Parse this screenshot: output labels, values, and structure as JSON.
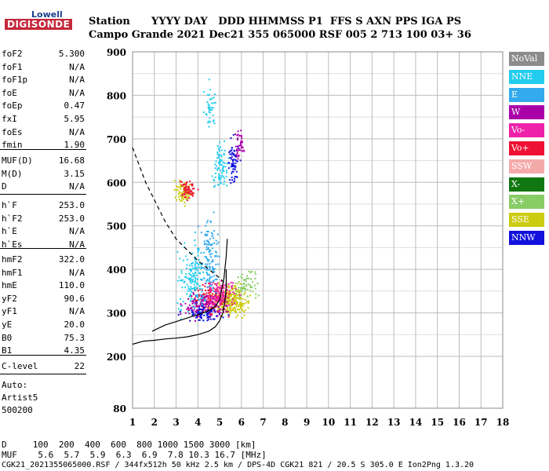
{
  "logo": {
    "top": "Lowell",
    "main": "DIGISONDE"
  },
  "header": {
    "line1": "Station      YYYY DAY   DDD HHMMSS P1  FFS S AXN PPS IGA PS",
    "line2": "Campo Grande 2021 Dec21 355 065000 RSF 005 2 713 100 03+ 36"
  },
  "params_group1": [
    {
      "name": "foF2",
      "value": "5.300"
    },
    {
      "name": "foF1",
      "value": "N/A"
    },
    {
      "name": "foF1p",
      "value": "N/A"
    },
    {
      "name": "foE",
      "value": "N/A"
    },
    {
      "name": "foEp",
      "value": "0.47"
    },
    {
      "name": "fxI",
      "value": "5.95"
    },
    {
      "name": "foEs",
      "value": "N/A"
    },
    {
      "name": "fmin",
      "value": "1.90"
    }
  ],
  "params_group2": [
    {
      "name": "MUF(D)",
      "value": "16.68"
    },
    {
      "name": "M(D)",
      "value": "3.15"
    },
    {
      "name": "D",
      "value": "N/A"
    }
  ],
  "params_group3": [
    {
      "name": "h`F",
      "value": "253.0"
    },
    {
      "name": "h`F2",
      "value": "253.0"
    },
    {
      "name": "h`E",
      "value": "N/A"
    },
    {
      "name": "h`Es",
      "value": "N/A"
    }
  ],
  "params_group4": [
    {
      "name": "hmF2",
      "value": "322.0"
    },
    {
      "name": "hmF1",
      "value": "N/A"
    },
    {
      "name": "hmE",
      "value": "110.0"
    },
    {
      "name": "yF2",
      "value": "90.6"
    },
    {
      "name": "yF1",
      "value": "N/A"
    },
    {
      "name": "yE",
      "value": "20.0"
    },
    {
      "name": "B0",
      "value": "75.3"
    },
    {
      "name": "B1",
      "value": "4.35"
    }
  ],
  "params_group5": [
    {
      "name": "C-level",
      "value": "22"
    }
  ],
  "autoscaling": {
    "line1": "Auto:",
    "line2": "Artist5",
    "line3": "500200"
  },
  "bottom": {
    "d_row": "D     100  200  400  600  800 1000 1500 3000 [km]",
    "muf_row": "MUF    5.6  5.7  5.9  6.3  6.9  7.8 10.3 16.7 [MHz]",
    "footer": "CGK21_2021355065000.RSF / 344fx512h 50 kHz 2.5 km / DPS-4D CGK21 821 / 20.5 S 305.0 E Ion2Png 1.3.20"
  },
  "legend": [
    {
      "label": "NoVal",
      "color": "#8c8c8c"
    },
    {
      "label": "NNE",
      "color": "#22ccee"
    },
    {
      "label": "E",
      "color": "#33aaee"
    },
    {
      "label": "W",
      "color": "#aa00aa"
    },
    {
      "label": "Vo-",
      "color": "#ee22aa"
    },
    {
      "label": "Vo+",
      "color": "#ee1133"
    },
    {
      "label": "SSW",
      "color": "#f5aaaa"
    },
    {
      "label": "X-",
      "color": "#117711"
    },
    {
      "label": "X+",
      "color": "#88cc66"
    },
    {
      "label": "SSE",
      "color": "#cccc11"
    },
    {
      "label": "NNW",
      "color": "#1111dd"
    }
  ],
  "chart_data": {
    "type": "scatter",
    "xlim": [
      1,
      18
    ],
    "ylim": [
      80,
      900
    ],
    "x_ticks": [
      1,
      2,
      3,
      4,
      5,
      6,
      7,
      8,
      9,
      10,
      11,
      12,
      13,
      14,
      15,
      16,
      17,
      18
    ],
    "y_ticks": [
      80,
      200,
      300,
      400,
      500,
      600,
      700,
      800,
      900
    ],
    "grid": true,
    "curves": [
      {
        "name": "profile",
        "style": "solid",
        "points": [
          [
            1,
            228
          ],
          [
            1.5,
            235
          ],
          [
            2,
            237
          ],
          [
            2.5,
            240
          ],
          [
            3,
            242
          ],
          [
            3.5,
            245
          ],
          [
            4,
            250
          ],
          [
            4.5,
            258
          ],
          [
            4.8,
            268
          ],
          [
            5.0,
            282
          ],
          [
            5.15,
            300
          ],
          [
            5.25,
            330
          ],
          [
            5.3,
            360
          ],
          [
            5.3,
            400
          ]
        ]
      },
      {
        "name": "trace",
        "style": "solid",
        "points": [
          [
            1.9,
            258
          ],
          [
            2.5,
            272
          ],
          [
            3,
            280
          ],
          [
            3.5,
            288
          ],
          [
            4,
            296
          ],
          [
            4.5,
            305
          ],
          [
            4.8,
            315
          ],
          [
            5.0,
            330
          ],
          [
            5.1,
            355
          ],
          [
            5.2,
            380
          ],
          [
            5.3,
            430
          ],
          [
            5.35,
            470
          ]
        ]
      },
      {
        "name": "dashed",
        "style": "dashed",
        "points": [
          [
            1,
            680
          ],
          [
            1.3,
            640
          ],
          [
            1.6,
            600
          ],
          [
            2,
            560
          ],
          [
            2.5,
            510
          ],
          [
            3,
            470
          ],
          [
            3.5,
            445
          ],
          [
            4,
            420
          ],
          [
            4.5,
            400
          ],
          [
            5,
            380
          ],
          [
            5.3,
            365
          ]
        ]
      }
    ],
    "scatter_clusters": [
      {
        "legend": "SSE",
        "cx": 5.5,
        "cy": 330,
        "sx": 1.1,
        "sy": 30,
        "n": 260
      },
      {
        "legend": "Vo+",
        "cx": 4.5,
        "cy": 330,
        "sx": 1.2,
        "sy": 35,
        "n": 160
      },
      {
        "legend": "W",
        "cx": 4.3,
        "cy": 320,
        "sx": 1.3,
        "sy": 30,
        "n": 140
      },
      {
        "legend": "Vo-",
        "cx": 5.0,
        "cy": 345,
        "sx": 1.0,
        "sy": 30,
        "n": 110
      },
      {
        "legend": "NNE",
        "cx": 3.8,
        "cy": 380,
        "sx": 1.0,
        "sy": 70,
        "n": 180
      },
      {
        "legend": "E",
        "cx": 4.5,
        "cy": 430,
        "sx": 0.6,
        "sy": 80,
        "n": 120
      },
      {
        "legend": "NNW",
        "cx": 4.2,
        "cy": 300,
        "sx": 1.2,
        "sy": 18,
        "n": 70
      },
      {
        "legend": "X+",
        "cx": 6.2,
        "cy": 370,
        "sx": 0.8,
        "sy": 30,
        "n": 60
      },
      {
        "legend": "SSE",
        "cx": 3.3,
        "cy": 580,
        "sx": 0.6,
        "sy": 25,
        "n": 80
      },
      {
        "legend": "Vo+",
        "cx": 3.5,
        "cy": 585,
        "sx": 0.5,
        "sy": 22,
        "n": 60
      },
      {
        "legend": "NNE",
        "cx": 5.0,
        "cy": 640,
        "sx": 0.5,
        "sy": 50,
        "n": 80
      },
      {
        "legend": "NNW",
        "cx": 5.6,
        "cy": 650,
        "sx": 0.35,
        "sy": 50,
        "n": 70
      },
      {
        "legend": "W",
        "cx": 5.9,
        "cy": 690,
        "sx": 0.3,
        "sy": 30,
        "n": 40
      },
      {
        "legend": "NNE",
        "cx": 4.5,
        "cy": 780,
        "sx": 0.4,
        "sy": 50,
        "n": 40
      }
    ]
  }
}
